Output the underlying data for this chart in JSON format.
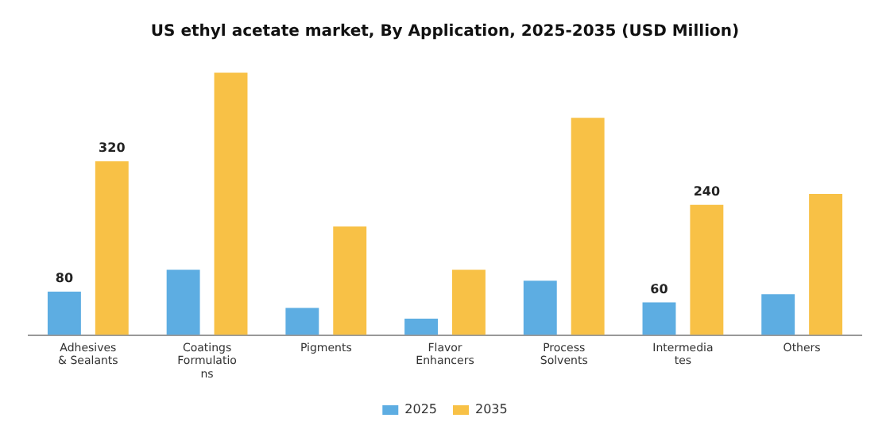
{
  "chart_data": {
    "type": "bar",
    "title": "US ethyl acetate market, By Application, 2025-2035 (USD Million)",
    "categories": [
      "Adhesives & Sealants",
      "Coatings Formulations",
      "Pigments",
      "Flavor Enhancers",
      "Process Solvents",
      "Intermediates",
      "Others"
    ],
    "series": [
      {
        "name": "2025",
        "color": "#5dade2",
        "values": [
          80,
          120,
          50,
          30,
          100,
          60,
          75
        ],
        "value_labels": [
          "80",
          null,
          null,
          null,
          null,
          "60",
          null
        ]
      },
      {
        "name": "2035",
        "color": "#f8c146",
        "values": [
          320,
          483,
          200,
          120,
          400,
          240,
          260
        ],
        "value_labels": [
          "320",
          null,
          null,
          null,
          null,
          "240",
          null
        ]
      }
    ],
    "legend": "bottom",
    "grid": false
  }
}
